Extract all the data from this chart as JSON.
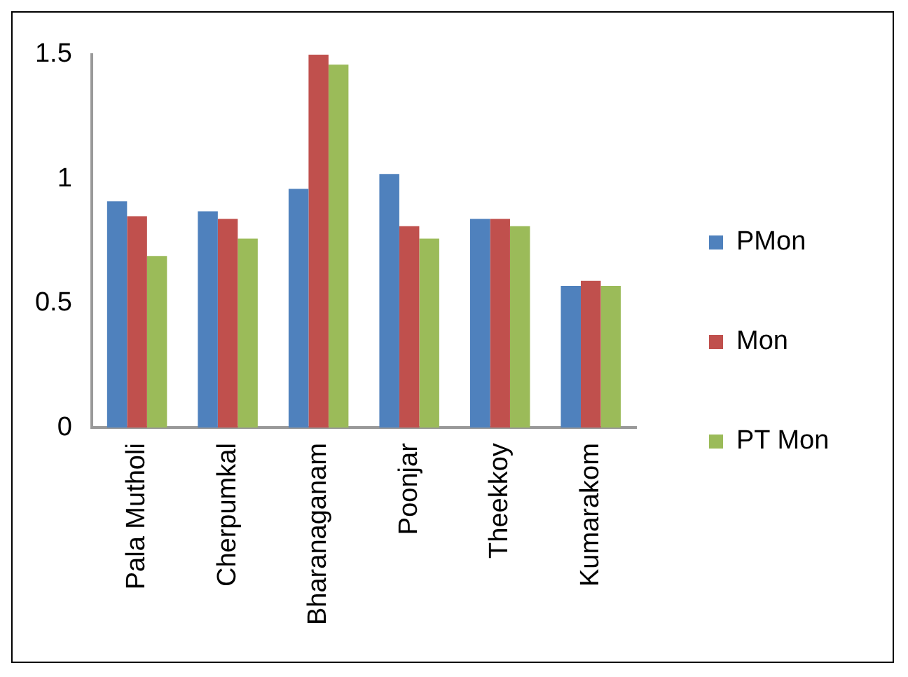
{
  "chart_data": {
    "type": "bar",
    "categories": [
      "Pala Mutholi",
      "Cherpumkal",
      "Bharanaganam",
      "Poonjar",
      "Theekkoy",
      "Kumarakom"
    ],
    "series": [
      {
        "name": "PMon",
        "color": "#4f81bd",
        "values": [
          0.91,
          0.87,
          0.96,
          1.02,
          0.84,
          0.57
        ]
      },
      {
        "name": "Mon",
        "color": "#c0504d",
        "values": [
          0.85,
          0.84,
          1.5,
          0.81,
          0.84,
          0.59
        ]
      },
      {
        "name": "PT Mon",
        "color": "#9bbb59",
        "values": [
          0.69,
          0.76,
          1.46,
          0.76,
          0.81,
          0.57
        ]
      }
    ],
    "ylim": [
      0,
      1.5
    ],
    "yticks": [
      0,
      0.5,
      1,
      1.5
    ],
    "grid": false,
    "legend": "right"
  }
}
